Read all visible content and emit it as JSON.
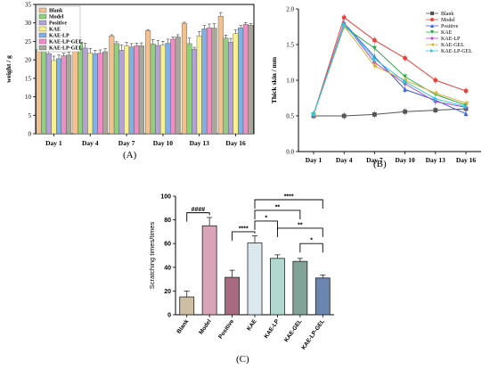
{
  "chart_data": [
    {
      "panel": "(A)",
      "type": "bar",
      "ylabel": "weight / g",
      "ylim": [
        0,
        35
      ],
      "yticks": [
        "0",
        "5",
        "10",
        "15",
        "20",
        "25",
        "30",
        "35"
      ],
      "categories": [
        "Day 1",
        "Day 4",
        "Day 7",
        "Day 10",
        "Day 13",
        "Day 16"
      ],
      "legend_position": "top-left",
      "series": [
        {
          "name": "Blank",
          "color": "#f4c08c",
          "values": [
            22.8,
            25.2,
            26.5,
            27.9,
            29.9,
            31.8
          ],
          "errors": [
            0.4,
            0.5,
            0.3,
            0.3,
            0.3,
            1.0
          ]
        },
        {
          "name": "Model",
          "color": "#8fcf7f",
          "values": [
            23.4,
            24.8,
            24.4,
            24.3,
            24.4,
            25.9
          ],
          "errors": [
            0.5,
            0.6,
            0.5,
            1.2,
            1.5,
            0.8
          ]
        },
        {
          "name": "Positive",
          "color": "#b3a2d8",
          "values": [
            21.7,
            23.2,
            22.6,
            23.9,
            22.9,
            24.8
          ],
          "errors": [
            1.6,
            1.3,
            1.4,
            1.3,
            0.5,
            1.0
          ]
        },
        {
          "name": "KAE",
          "color": "#f8f08c",
          "values": [
            19.8,
            21.8,
            23.7,
            24.0,
            26.5,
            27.1
          ],
          "errors": [
            1.2,
            1.3,
            1.0,
            1.0,
            1.2,
            1.0
          ]
        },
        {
          "name": "KAE-LP",
          "color": "#7fb0e6",
          "values": [
            20.3,
            21.7,
            23.5,
            24.5,
            28.4,
            28.7
          ],
          "errors": [
            1.0,
            0.9,
            0.9,
            1.1,
            0.9,
            0.6
          ]
        },
        {
          "name": "KAE-LP-GEL",
          "color": "#f08ec4",
          "values": [
            21.1,
            21.8,
            23.8,
            25.6,
            28.7,
            29.6
          ],
          "errors": [
            0.7,
            0.9,
            0.7,
            0.6,
            1.0,
            0.5
          ]
        },
        {
          "name": "KAE-LP-GEL",
          "color": "#a7a89a",
          "values": [
            21.3,
            22.2,
            23.8,
            26.2,
            28.6,
            29.4
          ],
          "errors": [
            0.8,
            0.8,
            0.8,
            0.6,
            1.2,
            0.4
          ]
        }
      ]
    },
    {
      "panel": "(B)",
      "type": "line",
      "ylabel": "Thick skin / mm",
      "ylim": [
        0.0,
        2.0
      ],
      "yticks": [
        "0.0",
        "0.5",
        "1.0",
        "1.5",
        "2.0"
      ],
      "categories": [
        "Day 1",
        "Day 4",
        "Day 7",
        "Day 10",
        "Day 13",
        "Day 16"
      ],
      "legend_position": "top-right",
      "series": [
        {
          "name": "Blank",
          "color": "#555555",
          "marker": "square",
          "values": [
            0.5,
            0.5,
            0.52,
            0.56,
            0.58,
            0.6
          ]
        },
        {
          "name": "Model",
          "color": "#e8423c",
          "marker": "circle",
          "values": [
            0.52,
            1.88,
            1.56,
            1.31,
            1.0,
            0.85
          ]
        },
        {
          "name": "Positive",
          "color": "#3a5ee0",
          "marker": "triangle-up",
          "values": [
            0.52,
            1.8,
            1.33,
            0.87,
            0.72,
            0.53
          ]
        },
        {
          "name": "KAE",
          "color": "#2da74a",
          "marker": "triangle-down",
          "values": [
            0.52,
            1.75,
            1.45,
            1.05,
            0.8,
            0.65
          ]
        },
        {
          "name": "KAE-LP",
          "color": "#b04ad8",
          "marker": "diamond",
          "values": [
            0.52,
            1.8,
            1.25,
            0.95,
            0.7,
            0.62
          ]
        },
        {
          "name": "KAE-GEL",
          "color": "#d8b23a",
          "marker": "triangle-left",
          "values": [
            0.52,
            1.76,
            1.2,
            1.0,
            0.82,
            0.68
          ]
        },
        {
          "name": "KAE-LP-GEL",
          "color": "#2ec8d8",
          "marker": "triangle-right",
          "values": [
            0.52,
            1.78,
            1.3,
            0.98,
            0.74,
            0.63
          ]
        }
      ]
    },
    {
      "panel": "(C)",
      "type": "bar",
      "ylabel": "Scratching times/times",
      "ylim": [
        0,
        100
      ],
      "yticks": [
        "0",
        "20",
        "40",
        "60",
        "80",
        "100"
      ],
      "categories": [
        "Blank",
        "Model",
        "Positive",
        "KAE",
        "KAE-LP",
        "KAE-GEL",
        "KAE-LP-GEL"
      ],
      "colors": [
        "#cdbfa4",
        "#d8a5b8",
        "#a86a80",
        "#dbe9ee",
        "#b2d8cf",
        "#82a398",
        "#6a86b0"
      ],
      "values": [
        15,
        75,
        31.5,
        60.5,
        47.5,
        45,
        31
      ],
      "errors": [
        5,
        7,
        6,
        6,
        3,
        2.5,
        2.5
      ],
      "significance": [
        {
          "from": 0,
          "to": 1,
          "label": "####"
        },
        {
          "from": 2,
          "to": 3,
          "label": "****"
        },
        {
          "from": 3,
          "to": 4,
          "label": "*"
        },
        {
          "from": 3,
          "to": 5,
          "label": "**"
        },
        {
          "from": 3,
          "to": 6,
          "label": "****"
        },
        {
          "from": 4,
          "to": 6,
          "label": "**"
        },
        {
          "from": 5,
          "to": 6,
          "label": "*"
        }
      ]
    }
  ]
}
